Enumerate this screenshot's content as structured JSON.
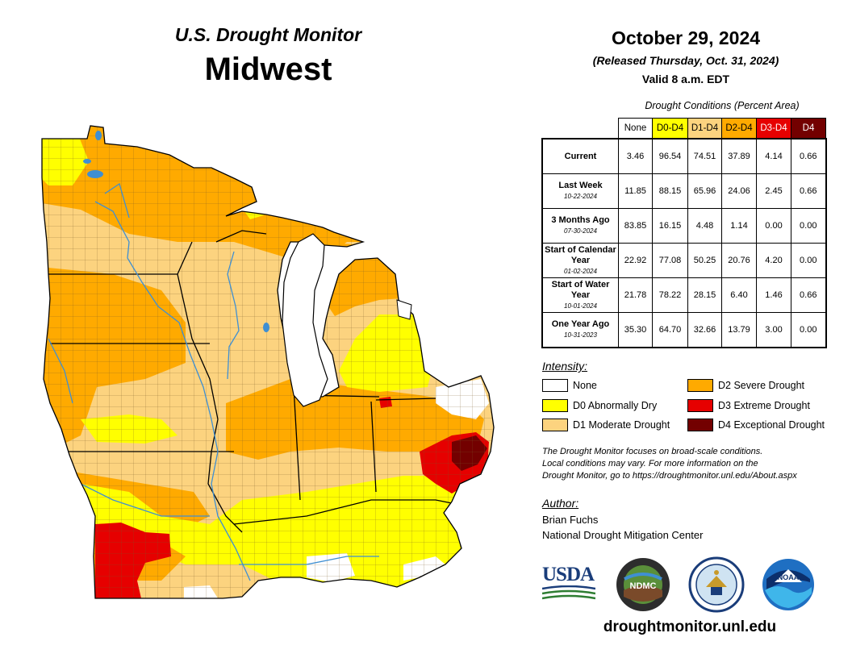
{
  "header": {
    "subtitle": "U.S. Drought Monitor",
    "region": "Midwest",
    "date": "October 29, 2024",
    "released": "(Released Thursday, Oct. 31, 2024)",
    "valid": "Valid 8 a.m. EDT"
  },
  "table": {
    "caption": "Drought Conditions (Percent Area)",
    "columns": [
      {
        "label": "None",
        "color": "#ffffff"
      },
      {
        "label": "D0-D4",
        "color": "#ffff00"
      },
      {
        "label": "D1-D4",
        "color": "#fcd37f"
      },
      {
        "label": "D2-D4",
        "color": "#ffaa00"
      },
      {
        "label": "D3-D4",
        "color": "#e60000"
      },
      {
        "label": "D4",
        "color": "#730000"
      }
    ],
    "rows": [
      {
        "label": "Current",
        "date": "",
        "values": [
          "3.46",
          "96.54",
          "74.51",
          "37.89",
          "4.14",
          "0.66"
        ]
      },
      {
        "label": "Last Week",
        "date": "10-22-2024",
        "values": [
          "11.85",
          "88.15",
          "65.96",
          "24.06",
          "2.45",
          "0.66"
        ]
      },
      {
        "label": "3 Months Ago",
        "date": "07-30-2024",
        "values": [
          "83.85",
          "16.15",
          "4.48",
          "1.14",
          "0.00",
          "0.00"
        ]
      },
      {
        "label": "Start of Calendar Year",
        "date": "01-02-2024",
        "values": [
          "22.92",
          "77.08",
          "50.25",
          "20.76",
          "4.20",
          "0.00"
        ]
      },
      {
        "label": "Start of Water Year",
        "date": "10-01-2024",
        "values": [
          "21.78",
          "78.22",
          "28.15",
          "6.40",
          "1.46",
          "0.66"
        ]
      },
      {
        "label": "One Year Ago",
        "date": "10-31-2023",
        "values": [
          "35.30",
          "64.70",
          "32.66",
          "13.79",
          "3.00",
          "0.00"
        ]
      }
    ]
  },
  "legend": {
    "title": "Intensity:",
    "items": [
      {
        "label": "None",
        "color": "#ffffff"
      },
      {
        "label": "D0 Abnormally Dry",
        "color": "#ffff00"
      },
      {
        "label": "D1 Moderate Drought",
        "color": "#fcd37f"
      },
      {
        "label": "D2 Severe Drought",
        "color": "#ffaa00"
      },
      {
        "label": "D3 Extreme Drought",
        "color": "#e60000"
      },
      {
        "label": "D4 Exceptional Drought",
        "color": "#730000"
      }
    ]
  },
  "note": {
    "line1": "The Drought Monitor focuses on broad-scale conditions.",
    "line2": "Local conditions may vary. For more information on the",
    "line3": "Drought Monitor, go to https://droughtmonitor.unl.edu/About.aspx"
  },
  "author": {
    "title": "Author:",
    "name": "Brian Fuchs",
    "org": "National Drought Mitigation Center"
  },
  "logos": {
    "usda": "USDA",
    "ndmc": "NDMC",
    "noaa": "NOAA",
    "ndmc_ring": "NATIONAL DROUGHT MITIGATION CENTER"
  },
  "url": "droughtmonitor.unl.edu",
  "colors": {
    "none": "#ffffff",
    "d0": "#ffff00",
    "d1": "#fcd37f",
    "d2": "#ffaa00",
    "d3": "#e60000",
    "d4": "#730000",
    "water": "#3f8fd2",
    "county_line": "#7a5a2a",
    "state_line": "#000000"
  }
}
